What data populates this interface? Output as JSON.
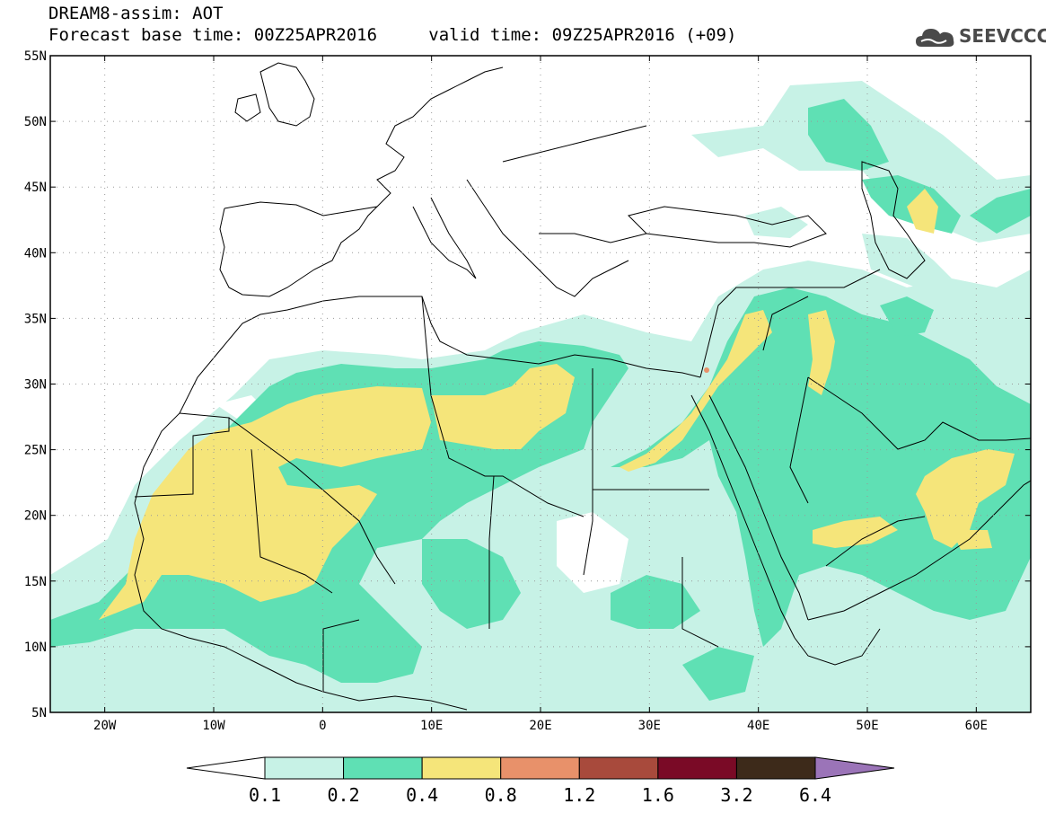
{
  "header": {
    "title": "DREAM8-assim: AOT",
    "base_time_label": "Forecast base time:",
    "base_time": "00Z25APR2016",
    "valid_time_label": "valid time:",
    "valid_time": "09Z25APR2016 (+09)"
  },
  "logo": {
    "text": "SEEVCCC",
    "icon": "cloud-logo-icon"
  },
  "map": {
    "lon_range": [
      -25,
      65
    ],
    "lat_range": [
      5,
      55
    ],
    "lat_ticks": [
      {
        "value": 55,
        "label": "55N"
      },
      {
        "value": 50,
        "label": "50N"
      },
      {
        "value": 45,
        "label": "45N"
      },
      {
        "value": 40,
        "label": "40N"
      },
      {
        "value": 35,
        "label": "35N"
      },
      {
        "value": 30,
        "label": "30N"
      },
      {
        "value": 25,
        "label": "25N"
      },
      {
        "value": 20,
        "label": "20N"
      },
      {
        "value": 15,
        "label": "15N"
      },
      {
        "value": 10,
        "label": "10N"
      },
      {
        "value": 5,
        "label": "5N"
      }
    ],
    "lon_ticks": [
      {
        "value": -20,
        "label": "20W"
      },
      {
        "value": -10,
        "label": "10W"
      },
      {
        "value": 0,
        "label": "0"
      },
      {
        "value": 10,
        "label": "10E"
      },
      {
        "value": 20,
        "label": "20E"
      },
      {
        "value": 30,
        "label": "30E"
      },
      {
        "value": 40,
        "label": "40E"
      },
      {
        "value": 50,
        "label": "50E"
      },
      {
        "value": 60,
        "label": "60E"
      }
    ],
    "gridlines": "dotted"
  },
  "colorbar": {
    "labels": [
      "0.1",
      "0.2",
      "0.4",
      "0.8",
      "1.2",
      "1.6",
      "3.2",
      "6.4"
    ],
    "colors": [
      "#ffffff",
      "#c7f2e6",
      "#5fe0b4",
      "#f5e57a",
      "#e8916a",
      "#a84a3c",
      "#7a0a26",
      "#3d2a1a",
      "#9b74b8"
    ]
  }
}
